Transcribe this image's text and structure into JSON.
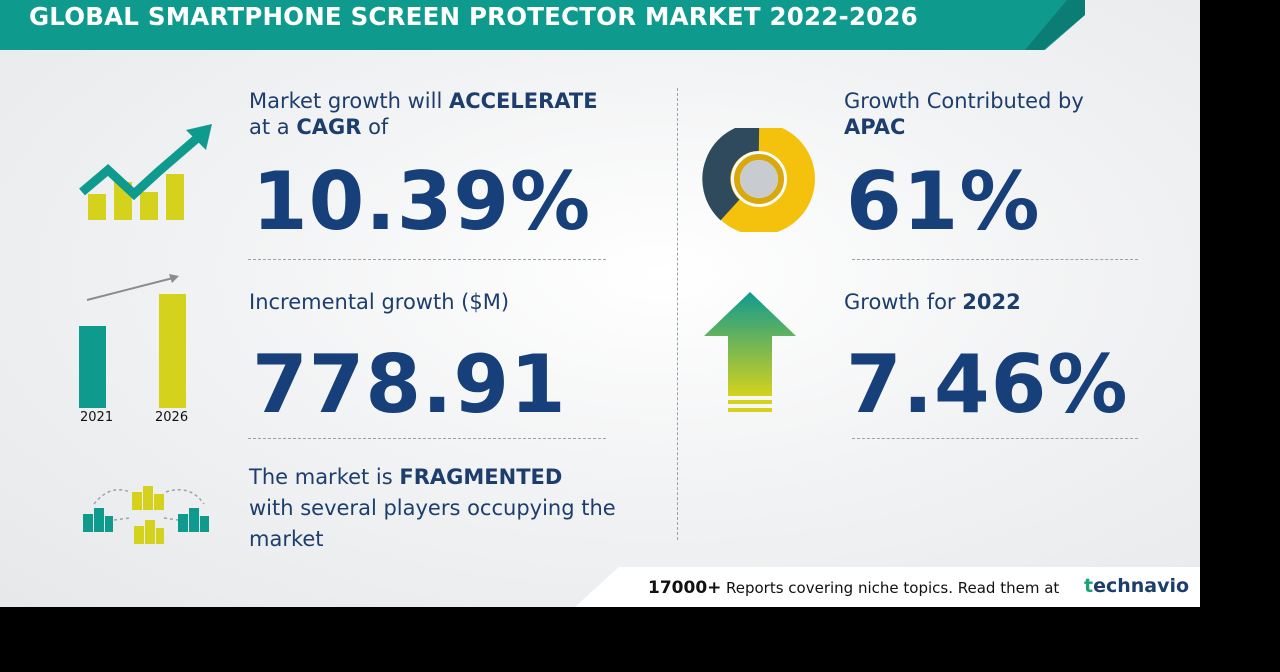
{
  "header": {
    "title": "GLOBAL SMARTPHONE SCREEN PROTECTOR MARKET 2022-2026"
  },
  "cagr": {
    "line1_pre": "Market growth will ",
    "line1_bold": "ACCELERATE",
    "line2_pre": "at a ",
    "line2_bold": "CAGR",
    "line2_post": " of",
    "value": "10.39%"
  },
  "incremental": {
    "label": "Incremental growth ($M)",
    "value": "778.91",
    "year_start": "2021",
    "year_end": "2026"
  },
  "market": {
    "line1_pre": "The market is ",
    "line1_bold": "FRAGMENTED",
    "line2": "with several players occupying the",
    "line3": "market"
  },
  "region": {
    "line1": "Growth Contributed by",
    "line2_bold": "APAC",
    "value": "61%"
  },
  "yoy": {
    "label_pre": "Growth for ",
    "label_bold": "2022",
    "value": "7.46%"
  },
  "footer": {
    "count": "17000+",
    "text": "Reports covering niche topics. Read them at",
    "logo_t": "t",
    "logo_rest": "echnavio"
  },
  "colors": {
    "teal": "#0f9a8e",
    "navy": "#173f79",
    "yellow": "#d4d21d",
    "gold": "#f4c20d"
  }
}
